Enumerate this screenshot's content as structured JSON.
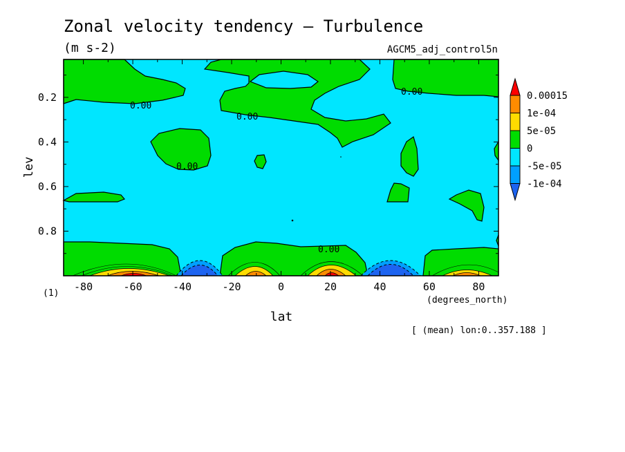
{
  "title": "Zonal velocity tendency — Turbulence",
  "units": "(m s-2)",
  "dataset": "AGCM5_adj_control5n",
  "figure_number": "(1)",
  "footer_note": "[ (mean) lon:0..357.188 ]",
  "contour_label": "0.00",
  "chart_data": {
    "type": "heatmap",
    "title": "Zonal velocity tendency — Turbulence",
    "subtitle": "(m s-2)",
    "xlabel": "lat",
    "xunits": "(degrees_north)",
    "ylabel": "lev",
    "xlim": [
      -88,
      88
    ],
    "ylim": [
      1.0,
      0.03
    ],
    "x_ticks": [
      -80,
      -60,
      -40,
      -20,
      0,
      20,
      40,
      60,
      80
    ],
    "x_tick_labels": [
      "-80",
      "-60",
      "-40",
      "-20",
      "0",
      "20",
      "40",
      "60",
      "80"
    ],
    "y_ticks": [
      0.2,
      0.4,
      0.6,
      0.8
    ],
    "y_tick_labels": [
      "0.2",
      "0.4",
      "0.6",
      "0.8"
    ],
    "colorbar": {
      "levels": [
        -0.0001,
        -5e-05,
        0,
        5e-05,
        0.0001,
        0.00015
      ],
      "labels": [
        "-1e-04",
        "-5e-05",
        "0",
        "5e-05",
        "1e-04",
        "0.00015"
      ],
      "colors": [
        "#1e64f0",
        "#00a0ff",
        "#00e6ff",
        "#00dc00",
        "#ffdc00",
        "#ff8c00",
        "#ff0000"
      ]
    },
    "features": [
      {
        "type": "positive_max",
        "lat": -57,
        "lev": 0.99,
        "value": 0.00015
      },
      {
        "type": "negative_min",
        "lat": -33,
        "lev": 0.99,
        "value": -0.0001
      },
      {
        "type": "positive_max",
        "lat": -10,
        "lev": 0.99,
        "value": 0.0001
      },
      {
        "type": "positive_max",
        "lat": 20,
        "lev": 0.99,
        "value": 0.00015
      },
      {
        "type": "negative_min",
        "lat": 45,
        "lev": 0.99,
        "value": -0.0001
      },
      {
        "type": "positive_max",
        "lat": 72,
        "lev": 0.99,
        "value": 0.0001
      }
    ]
  }
}
